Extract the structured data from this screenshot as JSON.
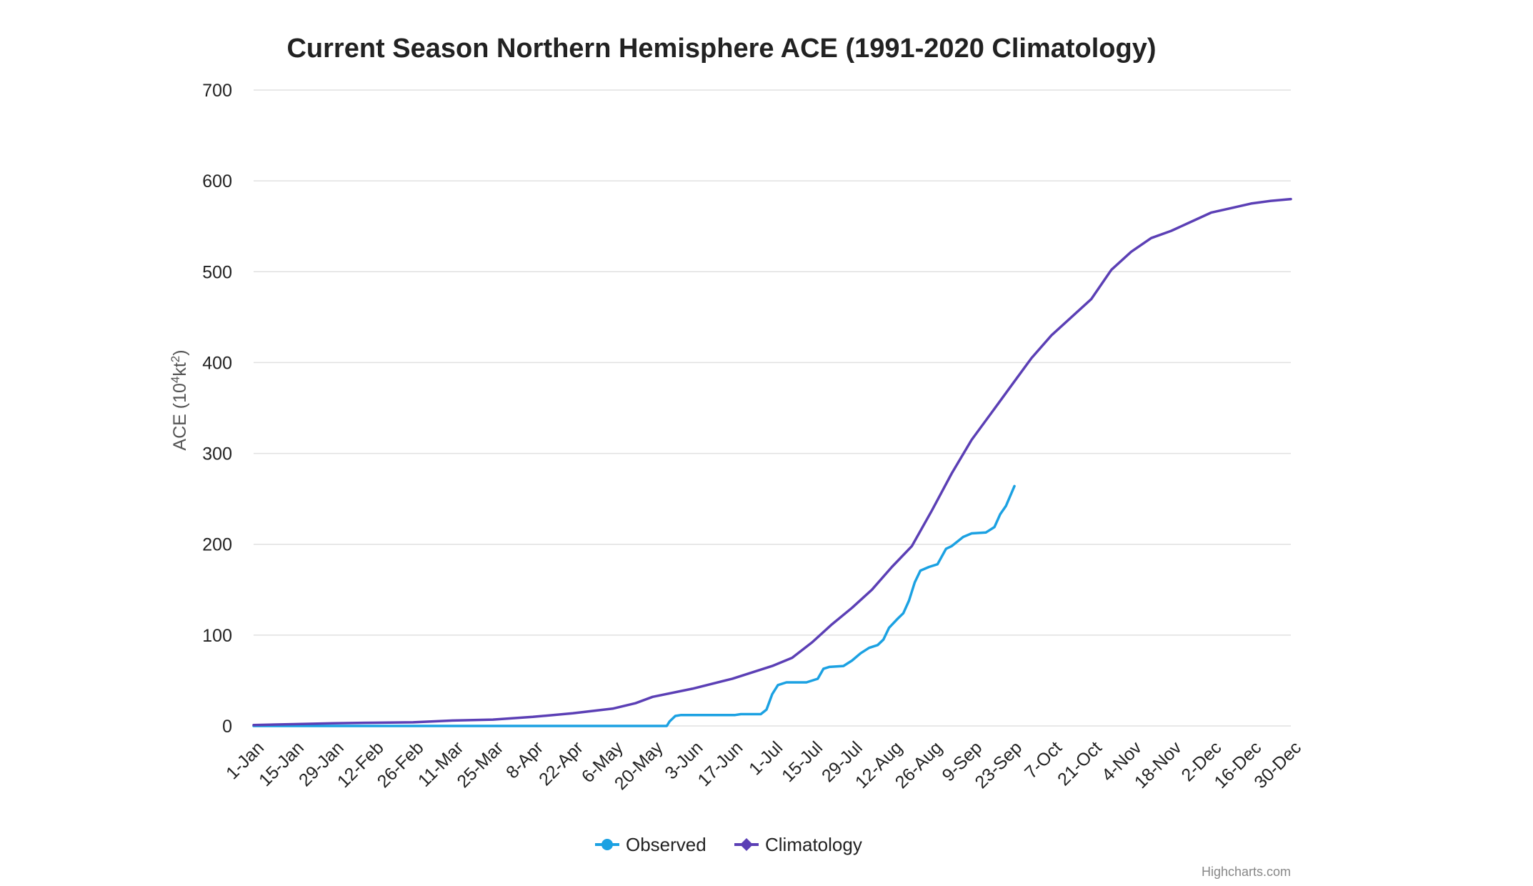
{
  "chart_data": {
    "type": "line",
    "title": "Current Season Northern Hemisphere ACE (1991-2020 Climatology)",
    "ylabel": "ACE (10⁴kt²)",
    "ylabel_parts": {
      "base": "ACE (10",
      "sup1": "4",
      "mid": "kt",
      "sup2": "2",
      "end": ")"
    },
    "xlabel": "",
    "ylim": [
      0,
      700
    ],
    "xlim": [
      1,
      365
    ],
    "y_ticks": [
      0,
      100,
      200,
      300,
      400,
      500,
      600,
      700
    ],
    "x_ticks": [
      {
        "label": "1-Jan",
        "day": 1
      },
      {
        "label": "15-Jan",
        "day": 15
      },
      {
        "label": "29-Jan",
        "day": 29
      },
      {
        "label": "12-Feb",
        "day": 43
      },
      {
        "label": "26-Feb",
        "day": 57
      },
      {
        "label": "11-Mar",
        "day": 71
      },
      {
        "label": "25-Mar",
        "day": 85
      },
      {
        "label": "8-Apr",
        "day": 99
      },
      {
        "label": "22-Apr",
        "day": 113
      },
      {
        "label": "6-May",
        "day": 127
      },
      {
        "label": "20-May",
        "day": 141
      },
      {
        "label": "3-Jun",
        "day": 155
      },
      {
        "label": "17-Jun",
        "day": 169
      },
      {
        "label": "1-Jul",
        "day": 183
      },
      {
        "label": "15-Jul",
        "day": 197
      },
      {
        "label": "29-Jul",
        "day": 211
      },
      {
        "label": "12-Aug",
        "day": 225
      },
      {
        "label": "26-Aug",
        "day": 239
      },
      {
        "label": "9-Sep",
        "day": 253
      },
      {
        "label": "23-Sep",
        "day": 267
      },
      {
        "label": "7-Oct",
        "day": 281
      },
      {
        "label": "21-Oct",
        "day": 295
      },
      {
        "label": "4-Nov",
        "day": 309
      },
      {
        "label": "18-Nov",
        "day": 323
      },
      {
        "label": "2-Dec",
        "day": 337
      },
      {
        "label": "16-Dec",
        "day": 351
      },
      {
        "label": "30-Dec",
        "day": 365
      }
    ],
    "grid": true,
    "legend_position": "bottom-center",
    "series": [
      {
        "name": "Observed",
        "color": "#1ba1e2",
        "marker": "circle",
        "points": [
          [
            1,
            0
          ],
          [
            140,
            0
          ],
          [
            146,
            0
          ],
          [
            147,
            5
          ],
          [
            149,
            11
          ],
          [
            151,
            12
          ],
          [
            160,
            12
          ],
          [
            170,
            12
          ],
          [
            172,
            13
          ],
          [
            179,
            13
          ],
          [
            181,
            18
          ],
          [
            183,
            35
          ],
          [
            185,
            45
          ],
          [
            188,
            48
          ],
          [
            195,
            48
          ],
          [
            199,
            52
          ],
          [
            201,
            63
          ],
          [
            203,
            65
          ],
          [
            208,
            66
          ],
          [
            211,
            72
          ],
          [
            214,
            80
          ],
          [
            217,
            86
          ],
          [
            220,
            89
          ],
          [
            222,
            95
          ],
          [
            224,
            108
          ],
          [
            227,
            118
          ],
          [
            229,
            124
          ],
          [
            231,
            138
          ],
          [
            233,
            158
          ],
          [
            235,
            171
          ],
          [
            238,
            175
          ],
          [
            241,
            178
          ],
          [
            244,
            195
          ],
          [
            246,
            198
          ],
          [
            248,
            203
          ],
          [
            250,
            208
          ],
          [
            253,
            212
          ],
          [
            258,
            213
          ],
          [
            261,
            219
          ],
          [
            263,
            233
          ],
          [
            265,
            242
          ],
          [
            268,
            264
          ]
        ]
      },
      {
        "name": "Climatology",
        "color": "#5b3fb5",
        "marker": "diamond",
        "points": [
          [
            1,
            1
          ],
          [
            15,
            2
          ],
          [
            29,
            3
          ],
          [
            43,
            3.5
          ],
          [
            57,
            4
          ],
          [
            71,
            6
          ],
          [
            85,
            7
          ],
          [
            99,
            10
          ],
          [
            113,
            14
          ],
          [
            127,
            19
          ],
          [
            135,
            25
          ],
          [
            141,
            32
          ],
          [
            155,
            41
          ],
          [
            169,
            52
          ],
          [
            183,
            66
          ],
          [
            190,
            75
          ],
          [
            197,
            92
          ],
          [
            204,
            112
          ],
          [
            211,
            130
          ],
          [
            218,
            150
          ],
          [
            225,
            175
          ],
          [
            232,
            198
          ],
          [
            239,
            237
          ],
          [
            246,
            278
          ],
          [
            253,
            315
          ],
          [
            260,
            345
          ],
          [
            267,
            375
          ],
          [
            274,
            405
          ],
          [
            281,
            430
          ],
          [
            288,
            450
          ],
          [
            295,
            470
          ],
          [
            302,
            502
          ],
          [
            309,
            522
          ],
          [
            316,
            537
          ],
          [
            323,
            545
          ],
          [
            330,
            555
          ],
          [
            337,
            565
          ],
          [
            344,
            570
          ],
          [
            351,
            575
          ],
          [
            358,
            578
          ],
          [
            365,
            580
          ]
        ]
      }
    ],
    "credits": "Highcharts.com"
  }
}
